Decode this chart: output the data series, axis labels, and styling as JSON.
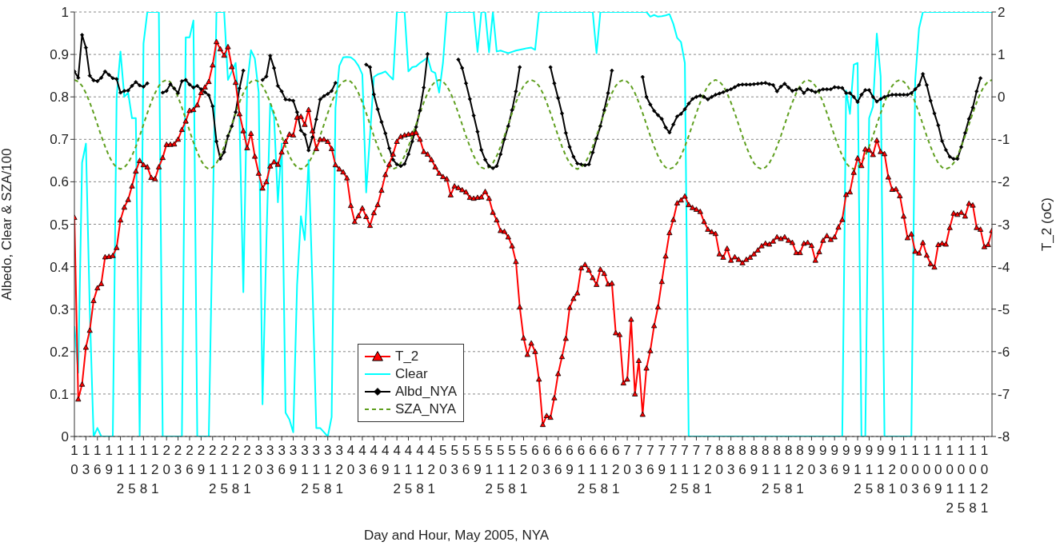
{
  "chart_data": {
    "type": "line",
    "xlabel": "Day and Hour, May 2005, NYA",
    "ylabel": "Albedo, Clear & SZA/100",
    "y2label": "T_2 (oC)",
    "categories": [
      "10",
      null,
      null,
      "13",
      null,
      null,
      "16",
      null,
      null,
      "19",
      null,
      null,
      "112",
      null,
      null,
      "115",
      null,
      null,
      "118",
      null,
      null,
      "121",
      null,
      null,
      "20",
      null,
      null,
      "23",
      null,
      null,
      "26",
      null,
      null,
      "29",
      null,
      null,
      "212",
      null,
      null,
      "215",
      null,
      null,
      "218",
      null,
      null,
      "221",
      null,
      null,
      "30",
      null,
      null,
      "33",
      null,
      null,
      "36",
      null,
      null,
      "39",
      null,
      null,
      "312",
      null,
      null,
      "315",
      null,
      null,
      "318",
      null,
      null,
      "321",
      null,
      null,
      "40",
      null,
      null,
      "43",
      null,
      null,
      "46",
      null,
      null,
      "49",
      null,
      null,
      "412",
      null,
      null,
      "415",
      null,
      null,
      "418",
      null,
      null,
      "421",
      null,
      null,
      "50",
      null,
      null,
      "53",
      null,
      null,
      "56",
      null,
      null,
      "59",
      null,
      null,
      "512",
      null,
      null,
      "515",
      null,
      null,
      "518",
      null,
      null,
      "521",
      null,
      null,
      "60",
      null,
      null,
      "63",
      null,
      null,
      "66",
      null,
      null,
      "69",
      null,
      null,
      "612",
      null,
      null,
      "615",
      null,
      null,
      "618",
      null,
      null,
      "621",
      null,
      null,
      "70",
      null,
      null,
      "73",
      null,
      null,
      "76",
      null,
      null,
      "79",
      null,
      null,
      "712",
      null,
      null,
      "715",
      null,
      null,
      "718",
      null,
      null,
      "721",
      null,
      null,
      "80",
      null,
      null,
      "83",
      null,
      null,
      "86",
      null,
      null,
      "89",
      null,
      null,
      "812",
      null,
      null,
      "815",
      null,
      null,
      "818",
      null,
      null,
      "821",
      null,
      null,
      "90",
      null,
      null,
      "93",
      null,
      null,
      "96",
      null,
      null,
      "99",
      null,
      null,
      "912",
      null,
      null,
      "915",
      null,
      null,
      "918",
      null,
      null,
      "921",
      null,
      null,
      "100",
      null,
      null,
      "103",
      null,
      null,
      "106",
      null,
      null,
      "109",
      null,
      null,
      "1012",
      null,
      null,
      "1015",
      null,
      null,
      "1018",
      null,
      null,
      "1021",
      null,
      null
    ],
    "ylim": [
      0,
      1
    ],
    "yticks": [
      0,
      0.1,
      0.2,
      0.3,
      0.4,
      0.5,
      0.6,
      0.7,
      0.8,
      0.9,
      1
    ],
    "y2lim": [
      -8,
      2
    ],
    "y2ticks": [
      -8,
      -7,
      -6,
      -5,
      -4,
      -3,
      -2,
      -1,
      0,
      1,
      2
    ],
    "grid": "y",
    "legend": "bottom",
    "series": [
      {
        "name": "T_2",
        "color": "#ff0000",
        "axis": "y2",
        "marker": "triangle",
        "values": [
          -2.84,
          -7.12,
          -6.77,
          -5.9,
          -5.5,
          -4.8,
          -4.5,
          -4.4,
          -3.77,
          -3.76,
          -3.74,
          -3.55,
          -2.9,
          -2.6,
          -2.42,
          -2.1,
          -1.75,
          -1.5,
          -1.6,
          -1.65,
          -1.9,
          -1.93,
          -1.65,
          -1.43,
          -1.12,
          -1.12,
          -1.11,
          -1.0,
          -0.77,
          -0.57,
          -0.32,
          -0.3,
          -0.19,
          0.1,
          0.23,
          0.36,
          0.75,
          1.3,
          1.13,
          0.98,
          1.18,
          0.71,
          0.34,
          -0.4,
          -0.8,
          -1.2,
          -0.86,
          -1.4,
          -1.8,
          -2.15,
          -2.0,
          -1.63,
          -1.53,
          -1.59,
          -1.3,
          -1.05,
          -0.88,
          -0.9,
          -0.48,
          -0.46,
          -0.65,
          -0.3,
          -0.8,
          -1.22,
          -1.0,
          -1.0,
          -1.05,
          -1.22,
          -1.6,
          -1.7,
          -1.77,
          -1.91,
          -2.56,
          -2.94,
          -2.8,
          -2.62,
          -2.82,
          -3.03,
          -2.73,
          -2.54,
          -2.2,
          -1.83,
          -1.59,
          -1.35,
          -1.05,
          -0.93,
          -0.9,
          -0.88,
          -0.86,
          -0.84,
          -1.0,
          -1.29,
          -1.35,
          -1.48,
          -1.65,
          -1.8,
          -1.88,
          -1.93,
          -2.31,
          -2.1,
          -2.14,
          -2.19,
          -2.24,
          -2.37,
          -2.39,
          -2.37,
          -2.36,
          -2.23,
          -2.39,
          -2.72,
          -2.9,
          -3.15,
          -3.17,
          -3.3,
          -3.51,
          -3.88,
          -4.95,
          -5.68,
          -6.07,
          -5.8,
          -6.0,
          -6.65,
          -7.72,
          -7.51,
          -7.55,
          -7.09,
          -6.52,
          -6.12,
          -5.69,
          -4.96,
          -4.75,
          -4.62,
          -4.03,
          -3.95,
          -4.08,
          -4.26,
          -4.42,
          -4.06,
          -4.16,
          -4.41,
          -4.39,
          -5.56,
          -5.6,
          -6.74,
          -6.65,
          -5.24,
          -7.0,
          -6.21,
          -7.48,
          -6.39,
          -5.98,
          -5.39,
          -4.95,
          -4.35,
          -3.75,
          -3.2,
          -2.89,
          -2.5,
          -2.43,
          -2.34,
          -2.54,
          -2.61,
          -2.65,
          -2.7,
          -2.94,
          -3.12,
          -3.18,
          -3.22,
          -3.7,
          -3.78,
          -3.57,
          -3.85,
          -3.77,
          -3.83,
          -3.91,
          -3.83,
          -3.78,
          -3.7,
          -3.61,
          -3.51,
          -3.45,
          -3.47,
          -3.4,
          -3.3,
          -3.34,
          -3.3,
          -3.38,
          -3.43,
          -3.67,
          -3.67,
          -3.45,
          -3.43,
          -3.5,
          -3.85,
          -3.65,
          -3.38,
          -3.27,
          -3.36,
          -3.3,
          -3.07,
          -2.89,
          -2.3,
          -2.24,
          -1.78,
          -1.44,
          -1.62,
          -1.23,
          -1.25,
          -1.36,
          -1.02,
          -1.29,
          -1.34,
          -1.89,
          -2.18,
          -2.17,
          -2.33,
          -2.81,
          -3.32,
          -3.23,
          -3.64,
          -3.68,
          -3.43,
          -3.73,
          -3.93,
          -4.01,
          -3.48,
          -3.45,
          -3.47,
          -3.08,
          -2.74,
          -2.77,
          -2.72,
          -2.81,
          -2.51,
          -2.55,
          -3.08,
          -3.12,
          -3.53,
          -3.48,
          -3.15
        ]
      },
      {
        "name": "Clear",
        "color": "#00ffff",
        "marker": "none",
        "values": [
          0.26,
          0.15,
          0.645,
          0.69,
          0.3,
          0,
          0.02,
          0,
          0,
          0,
          0,
          0.8,
          0.907,
          0.8,
          0.81,
          0.75,
          0.75,
          0,
          0.926,
          1,
          1,
          1,
          1,
          0,
          0,
          0,
          0,
          0,
          0,
          0.94,
          0.94,
          0.98,
          0,
          0,
          0,
          0,
          0.5,
          1,
          1,
          1,
          0.84,
          0.86,
          0.88,
          0.75,
          0.34,
          0.83,
          0.91,
          0.89,
          0.81,
          0.076,
          0.456,
          0.784,
          0.754,
          0.552,
          0.69,
          0.056,
          0.04,
          0.01,
          0.357,
          0.519,
          0.463,
          0.651,
          0.357,
          0.02,
          0.02,
          0.01,
          0,
          0.046,
          0.774,
          0.873,
          0.893,
          0.894,
          0.893,
          0.886,
          0.873,
          0.853,
          0.575,
          0.71,
          0.847,
          0.853,
          0.856,
          0.86,
          0.85,
          0.841,
          1,
          1,
          1,
          0.86,
          0.87,
          0.872,
          0.88,
          0.886,
          0.893,
          0.861,
          0.856,
          0.81,
          0.88,
          1,
          1,
          1,
          1,
          1,
          1,
          1,
          1,
          0.906,
          1,
          1,
          0.905,
          1,
          0.907,
          0.909,
          0.906,
          0.903,
          0.906,
          0.909,
          0.911,
          0.913,
          0.915,
          0.916,
          0.911,
          1,
          1,
          1,
          1,
          1,
          1,
          1,
          1,
          1,
          1,
          1,
          1,
          1,
          1,
          1,
          0.903,
          1,
          1,
          1,
          1,
          1,
          1,
          1,
          1,
          1,
          1,
          1,
          1,
          1,
          0.989,
          0.993,
          0.989,
          0.99,
          0.992,
          0.995,
          0.972,
          0.939,
          0.929,
          0.88,
          0,
          0,
          0,
          0,
          0,
          0,
          0,
          0,
          0,
          0,
          0,
          0,
          0,
          0,
          0,
          0,
          0,
          0,
          0,
          0,
          0,
          0,
          0,
          0,
          0,
          0,
          0,
          0,
          0,
          0,
          0,
          0,
          0,
          0,
          0,
          0,
          0,
          0,
          0,
          0,
          0,
          0.815,
          0.76,
          0.876,
          0.88,
          0,
          0,
          0.75,
          0.777,
          0.949,
          0.848,
          0,
          0,
          0,
          0,
          0,
          0,
          0,
          0,
          0.84,
          0.962,
          1,
          1,
          1,
          1,
          1,
          1,
          1,
          1,
          1,
          1,
          1,
          1,
          1,
          1,
          1,
          1,
          1,
          1,
          1
        ]
      },
      {
        "name": "Albd_NYA",
        "color": "#000000",
        "marker": "diamond",
        "values": [
          0.86,
          0.845,
          0.946,
          0.916,
          0.85,
          0.839,
          0.837,
          0.845,
          0.86,
          0.852,
          0.844,
          0.842,
          0.81,
          0.814,
          0.815,
          0.826,
          0.835,
          0.827,
          0.824,
          0.832,
          null,
          null,
          null,
          0.81,
          0.814,
          0.83,
          0.82,
          0.809,
          0.837,
          0.84,
          0.829,
          0.822,
          0.826,
          0.818,
          0.811,
          0.804,
          0.778,
          0.695,
          0.654,
          0.67,
          0.708,
          0.731,
          0.764,
          0.82,
          0.862,
          null,
          null,
          null,
          null,
          0.84,
          0.848,
          0.897,
          0.868,
          0.826,
          0.813,
          0.794,
          0.793,
          0.791,
          0.764,
          0.721,
          0.711,
          0.674,
          0.705,
          0.747,
          0.794,
          0.802,
          0.807,
          0.814,
          0.833,
          null,
          null,
          null,
          null,
          null,
          null,
          null,
          0.876,
          0.87,
          0.806,
          0.771,
          0.741,
          0.714,
          0.679,
          0.652,
          0.641,
          0.637,
          0.642,
          0.665,
          0.695,
          0.729,
          0.768,
          0.822,
          0.901,
          null,
          null,
          null,
          null,
          null,
          null,
          null,
          0.888,
          0.868,
          0.832,
          0.795,
          0.756,
          0.718,
          0.675,
          0.652,
          0.637,
          0.632,
          0.637,
          0.665,
          0.7,
          0.731,
          0.769,
          0.813,
          0.87,
          null,
          null,
          null,
          null,
          null,
          null,
          null,
          0.87,
          0.832,
          0.797,
          0.761,
          0.715,
          0.682,
          0.659,
          0.643,
          0.641,
          0.639,
          0.641,
          0.669,
          0.702,
          0.731,
          0.769,
          0.809,
          0.862,
          null,
          null,
          null,
          null,
          null,
          null,
          null,
          0.847,
          0.8,
          0.782,
          0.767,
          0.757,
          0.748,
          0.728,
          0.716,
          0.735,
          0.754,
          0.76,
          0.771,
          0.784,
          0.795,
          0.8,
          0.803,
          0.8,
          0.794,
          0.8,
          0.805,
          0.808,
          0.811,
          0.815,
          0.818,
          0.823,
          0.828,
          0.829,
          0.829,
          0.829,
          0.83,
          0.831,
          0.832,
          0.833,
          0.83,
          0.828,
          0.813,
          0.824,
          0.831,
          0.822,
          0.814,
          0.817,
          0.82,
          0.809,
          0.818,
          0.815,
          0.811,
          0.815,
          0.818,
          0.818,
          0.818,
          0.823,
          0.822,
          0.821,
          0.809,
          0.809,
          0.8,
          0.788,
          0.805,
          0.816,
          0.816,
          0.8,
          0.789,
          0.795,
          0.8,
          0.803,
          0.805,
          0.805,
          0.805,
          0.805,
          0.805,
          0.809,
          0.818,
          0.828,
          0.854,
          0.828,
          0.791,
          0.761,
          0.733,
          0.696,
          0.675,
          0.659,
          0.654,
          0.654,
          0.682,
          0.715,
          0.748,
          0.775,
          0.813,
          0.844,
          null,
          null,
          null
        ]
      },
      {
        "name": "SZA_NYA",
        "color": "#5f9f1f",
        "marker": "none",
        "line_style": "dashed",
        "values": [
          0.84,
          0.836,
          0.826,
          0.809,
          0.787,
          0.762,
          0.735,
          0.708,
          0.683,
          0.661,
          0.644,
          0.634,
          0.63,
          0.634,
          0.644,
          0.661,
          0.683,
          0.708,
          0.735,
          0.762,
          0.787,
          0.809,
          0.826,
          0.836,
          0.84,
          0.835,
          0.82,
          0.8,
          0.775,
          0.748,
          0.72,
          0.693,
          0.67,
          0.65,
          0.636,
          0.63,
          0.634,
          0.644,
          0.661,
          0.683,
          0.708,
          0.735,
          0.762,
          0.787,
          0.809,
          0.826,
          0.836,
          0.84,
          0.836,
          0.826,
          0.809,
          0.787,
          0.762,
          0.735,
          0.708,
          0.683,
          0.661,
          0.644,
          0.634,
          0.63,
          0.634,
          0.644,
          0.661,
          0.683,
          0.708,
          0.735,
          0.762,
          0.787,
          0.809,
          0.826,
          0.836,
          0.84,
          0.836,
          0.826,
          0.809,
          0.787,
          0.762,
          0.735,
          0.708,
          0.683,
          0.661,
          0.644,
          0.634,
          0.63,
          0.634,
          0.644,
          0.661,
          0.683,
          0.708,
          0.735,
          0.762,
          0.787,
          0.809,
          0.826,
          0.836,
          0.84,
          0.836,
          0.826,
          0.809,
          0.787,
          0.762,
          0.735,
          0.708,
          0.683,
          0.661,
          0.644,
          0.634,
          0.63,
          0.634,
          0.644,
          0.661,
          0.683,
          0.708,
          0.735,
          0.762,
          0.787,
          0.809,
          0.826,
          0.836,
          0.84,
          0.836,
          0.826,
          0.809,
          0.787,
          0.762,
          0.735,
          0.708,
          0.683,
          0.661,
          0.644,
          0.634,
          0.63,
          0.634,
          0.644,
          0.661,
          0.683,
          0.708,
          0.735,
          0.762,
          0.787,
          0.809,
          0.826,
          0.836,
          0.84,
          0.836,
          0.826,
          0.809,
          0.787,
          0.762,
          0.735,
          0.708,
          0.683,
          0.661,
          0.644,
          0.634,
          0.63,
          0.634,
          0.644,
          0.661,
          0.683,
          0.708,
          0.735,
          0.762,
          0.787,
          0.809,
          0.826,
          0.836,
          0.84,
          0.836,
          0.826,
          0.809,
          0.787,
          0.762,
          0.735,
          0.708,
          0.683,
          0.661,
          0.644,
          0.634,
          0.63,
          0.634,
          0.644,
          0.661,
          0.683,
          0.708,
          0.735,
          0.762,
          0.787,
          0.809,
          0.826,
          0.836,
          0.84,
          0.836,
          0.826,
          0.809,
          0.787,
          0.762,
          0.735,
          0.708,
          0.683,
          0.661,
          0.644,
          0.634,
          0.63,
          0.634,
          0.644,
          0.661,
          0.683,
          0.708,
          0.735,
          0.762,
          0.787,
          0.809,
          0.826,
          0.836,
          0.84,
          0.836,
          0.826,
          0.809,
          0.787,
          0.762,
          0.735,
          0.708,
          0.683,
          0.661,
          0.644,
          0.634,
          0.63,
          0.634,
          0.644,
          0.661,
          0.683,
          0.708,
          0.735,
          0.762,
          0.787,
          0.809,
          0.826,
          0.836,
          0.84
        ]
      }
    ]
  }
}
